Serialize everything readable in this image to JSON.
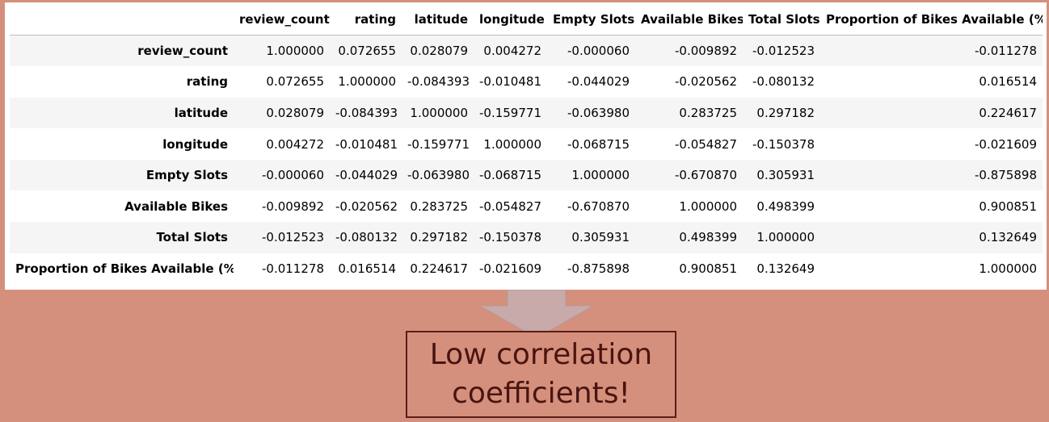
{
  "table": {
    "columns": [
      "",
      "review_count",
      "rating",
      "latitude",
      "longitude",
      "Empty Slots",
      "Available Bikes",
      "Total Slots",
      "Proportion of Bikes Available (%)"
    ],
    "rows": [
      {
        "label": "review_count",
        "values": [
          "1.000000",
          "0.072655",
          "0.028079",
          "0.004272",
          "-0.000060",
          "-0.009892",
          "-0.012523",
          "-0.011278"
        ]
      },
      {
        "label": "rating",
        "values": [
          "0.072655",
          "1.000000",
          "-0.084393",
          "-0.010481",
          "-0.044029",
          "-0.020562",
          "-0.080132",
          "0.016514"
        ]
      },
      {
        "label": "latitude",
        "values": [
          "0.028079",
          "-0.084393",
          "1.000000",
          "-0.159771",
          "-0.063980",
          "0.283725",
          "0.297182",
          "0.224617"
        ]
      },
      {
        "label": "longitude",
        "values": [
          "0.004272",
          "-0.010481",
          "-0.159771",
          "1.000000",
          "-0.068715",
          "-0.054827",
          "-0.150378",
          "-0.021609"
        ]
      },
      {
        "label": "Empty Slots",
        "values": [
          "-0.000060",
          "-0.044029",
          "-0.063980",
          "-0.068715",
          "1.000000",
          "-0.670870",
          "0.305931",
          "-0.875898"
        ]
      },
      {
        "label": "Available Bikes",
        "values": [
          "-0.009892",
          "-0.020562",
          "0.283725",
          "-0.054827",
          "-0.670870",
          "1.000000",
          "0.498399",
          "0.900851"
        ]
      },
      {
        "label": "Total Slots",
        "values": [
          "-0.012523",
          "-0.080132",
          "0.297182",
          "-0.150378",
          "0.305931",
          "0.498399",
          "1.000000",
          "0.132649"
        ]
      },
      {
        "label": "Proportion of Bikes Available (%)",
        "values": [
          "-0.011278",
          "0.016514",
          "0.224617",
          "-0.021609",
          "-0.875898",
          "0.900851",
          "0.132649",
          "1.000000"
        ]
      }
    ]
  },
  "callout": {
    "line1": "Low correlation",
    "line2": "coefficients!"
  },
  "colors": {
    "background": "#d4907c",
    "table_background": "#ffffff",
    "stripe": "#f5f5f5",
    "arrow_fill": "#c7aaa9",
    "callout_border": "#5a1e18",
    "callout_text": "#4a1410"
  },
  "icons": {
    "arrow": "down-arrow-icon"
  }
}
